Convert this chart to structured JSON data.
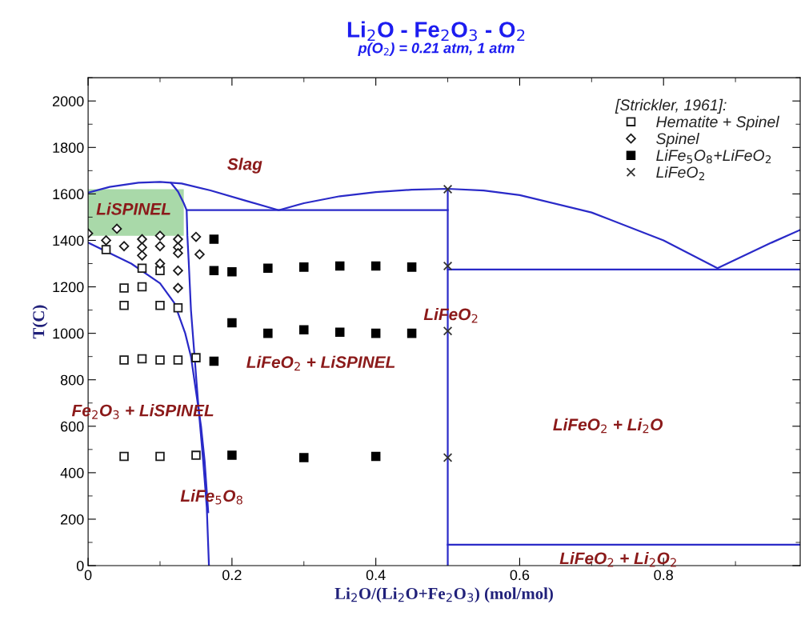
{
  "chart_data": {
    "type": "scatter",
    "title": "Li$_{2}$O - Fe$_{2}$O$_{3}$ - O$_{2}$",
    "subtitle": "p(O$_{2}$) = 0.21 atm, 1 atm",
    "xlabel": "Li$_{2}$O/(Li$_{2}$O+Fe$_{2}$O$_{3}$) (mol/mol)",
    "ylabel": "T(C)",
    "legend_title": "[Strickler, 1961]:",
    "xlim": [
      0,
      0.99
    ],
    "xticks": [
      0,
      0.2,
      0.4,
      0.6,
      0.8
    ],
    "ylim": [
      0,
      2100
    ],
    "yticks": [
      0,
      200,
      400,
      600,
      800,
      1000,
      1200,
      1400,
      1600,
      1800,
      2000
    ],
    "grid": false,
    "legend": "top right",
    "series": [
      {
        "type": "bar",
        "color": "#a9d9a9",
        "x": [
          0.0665
        ],
        "values": [
          200
        ],
        "base": [
          1420
        ]
      },
      {
        "type": "line",
        "color": "#2a2ac8",
        "x": [
          0,
          0.03,
          0.07,
          0.1,
          0.13,
          0.17,
          0.22,
          0.265,
          0.3,
          0.35,
          0.4,
          0.45,
          0.5,
          0.55,
          0.6,
          0.7,
          0.8,
          0.875,
          0.95,
          0.99
        ],
        "values": [
          1605,
          1630,
          1648,
          1652,
          1645,
          1615,
          1570,
          1530,
          1560,
          1590,
          1608,
          1618,
          1622,
          1615,
          1595,
          1520,
          1400,
          1280,
          1390,
          1445
        ]
      },
      {
        "type": "line",
        "color": "#2a2ac8",
        "x": [
          0.115,
          0.125,
          0.133,
          0.137,
          0.138,
          0.14,
          0.143,
          0.148,
          0.153,
          0.16,
          0.165,
          0.168
        ],
        "values": [
          1648,
          1610,
          1560,
          1530,
          1420,
          1300,
          1100,
          900,
          700,
          450,
          250,
          0
        ]
      },
      {
        "type": "line",
        "color": "#2a2ac8",
        "x": [
          0.137,
          0.5
        ],
        "values": [
          1530,
          1530
        ]
      },
      {
        "type": "line",
        "color": "#2a2ac8",
        "x": [
          0.5,
          0.5
        ],
        "values": [
          0,
          1622
        ]
      },
      {
        "type": "line",
        "color": "#2a2ac8",
        "x": [
          0.5,
          0.99
        ],
        "values": [
          1275,
          1275
        ]
      },
      {
        "type": "line",
        "color": "#2a2ac8",
        "x": [
          0.5,
          0.99
        ],
        "values": [
          90,
          90
        ]
      },
      {
        "type": "line",
        "color": "#2a2ac8",
        "x": [
          0,
          0.06,
          0.1,
          0.12,
          0.135,
          0.143,
          0.15,
          0.157,
          0.162,
          0.167
        ],
        "values": [
          1390,
          1300,
          1215,
          1130,
          1000,
          900,
          750,
          600,
          450,
          230
        ]
      },
      {
        "name": "Hematite + Spinel",
        "color": "#1a1a1a",
        "marker": "square",
        "x": [
          0.025,
          0.075,
          0.1,
          0.05,
          0.075,
          0.05,
          0.1,
          0.125,
          0.05,
          0.075,
          0.1,
          0.125,
          0.15,
          0.05,
          0.1,
          0.15
        ],
        "values": [
          1360,
          1280,
          1270,
          1195,
          1200,
          1120,
          1120,
          1110,
          885,
          890,
          885,
          885,
          895,
          470,
          470,
          475
        ]
      },
      {
        "name": "Spinel",
        "color": "#1a1a1a",
        "marker": "diamond",
        "x": [
          0,
          0.04,
          0.025,
          0.05,
          0.075,
          0.075,
          0.075,
          0.1,
          0.1,
          0.1,
          0.125,
          0.125,
          0.125,
          0.125,
          0.125,
          0.15,
          0.155
        ],
        "values": [
          1430,
          1450,
          1400,
          1375,
          1405,
          1370,
          1335,
          1420,
          1375,
          1300,
          1405,
          1370,
          1345,
          1270,
          1195,
          1415,
          1340
        ]
      },
      {
        "name": "LiFe$_{5}$O$_{8}$+LiFeO$_{2}$",
        "color": "#000000",
        "marker": "square",
        "x": [
          0.175,
          0.175,
          0.2,
          0.25,
          0.3,
          0.35,
          0.4,
          0.45,
          0.2,
          0.25,
          0.3,
          0.35,
          0.4,
          0.45,
          0.175,
          0.2,
          0.3,
          0.4
        ],
        "values": [
          1405,
          1270,
          1265,
          1280,
          1285,
          1290,
          1290,
          1285,
          1045,
          1000,
          1015,
          1005,
          1000,
          1000,
          880,
          475,
          465,
          470
        ]
      },
      {
        "name": "LiFeO$_{2}$",
        "color": "#333333",
        "marker": "cross",
        "x": [
          0.5,
          0.5,
          0.5,
          0.5
        ],
        "values": [
          1620,
          1290,
          1010,
          465
        ]
      }
    ],
    "annotations": [
      "Slag",
      "LiSPINEL",
      "LiFeO$_{2}$ + LiSPINEL",
      "Fe$_{2}$O$_{3}$ + LiSPINEL",
      "LiFe$_{5}$O$_{8}$",
      "LiFeO$_{2}$",
      "LiFeO$_{2}$ + Li$_{2}$O",
      "LiFeO$_{2}$ + Li$_{2}$O$_{2}$"
    ]
  }
}
